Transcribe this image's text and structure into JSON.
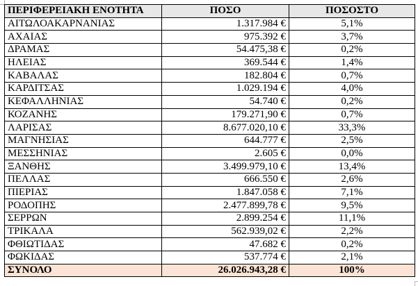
{
  "table": {
    "headers": [
      "ΠΕΡΙΦΕΡΕΙΑΚΗ ΕΝΟΤΗΤΑ",
      "ΠΟΣΟ",
      "ΠΟΣΟΣΤΟ"
    ],
    "rows": [
      {
        "region": "ΑΙΤΩΛΟΑΚΑΡΝΑΝΙΑΣ",
        "amount": "1.317.984 €",
        "percent": "5,1%"
      },
      {
        "region": "ΑΧΑΙΑΣ",
        "amount": "975.392 €",
        "percent": "3,7%"
      },
      {
        "region": "ΔΡΑΜΑΣ",
        "amount": "54.475,38 €",
        "percent": "0,2%"
      },
      {
        "region": "ΗΛΕΙΑΣ",
        "amount": "369.544 €",
        "percent": "1,4%"
      },
      {
        "region": "ΚΑΒΑΛΑΣ",
        "amount": "182.804 €",
        "percent": "0,7%"
      },
      {
        "region": "ΚΑΡΔΙΤΣΑΣ",
        "amount": "1.029.194 €",
        "percent": "4,0%"
      },
      {
        "region": "ΚΕΦΑΛΛΗΝΙΑΣ",
        "amount": "54.740 €",
        "percent": "0,2%"
      },
      {
        "region": "ΚΟΖΑΝΗΣ",
        "amount": "179.271,90 €",
        "percent": "0,7%"
      },
      {
        "region": "ΛΑΡΙΣΑΣ",
        "amount": "8.677.020,10 €",
        "percent": "33,3%"
      },
      {
        "region": "ΜΑΓΝΗΣΙΑΣ",
        "amount": "644.777 €",
        "percent": "2,5%"
      },
      {
        "region": "ΜΕΣΣΗΝΙΑΣ",
        "amount": "2.605 €",
        "percent": "0,0%"
      },
      {
        "region": "ΞΑΝΘΗΣ",
        "amount": "3.499.979,10 €",
        "percent": "13,4%"
      },
      {
        "region": "ΠΕΛΛΑΣ",
        "amount": "666.550 €",
        "percent": "2,6%"
      },
      {
        "region": "ΠΙΕΡΙΑΣ",
        "amount": "1.847.058 €",
        "percent": "7,1%"
      },
      {
        "region": "ΡΟΔΟΠΗΣ",
        "amount": "2.477.899,78 €",
        "percent": "9,5%"
      },
      {
        "region": "ΣΕΡΡΩΝ",
        "amount": "2.899.254 €",
        "percent": "11,1%"
      },
      {
        "region": "ΤΡΙΚΑΛΑ",
        "amount": "562.939,02 €",
        "percent": "2,2%"
      },
      {
        "region": "ΦΘΙΩΤΙΔΑΣ",
        "amount": "47.682 €",
        "percent": "0,2%"
      },
      {
        "region": "ΦΩΚΙΔΑΣ",
        "amount": "537.774 €",
        "percent": "2,1%"
      }
    ],
    "total": {
      "region": "ΣΥΝΟΛΟ",
      "amount": "26.026.943,28 €",
      "percent": "100%"
    }
  },
  "colors": {
    "header_bg": "#e7e7e7",
    "total_bg": "#fbe4d5",
    "border": "#000000"
  }
}
